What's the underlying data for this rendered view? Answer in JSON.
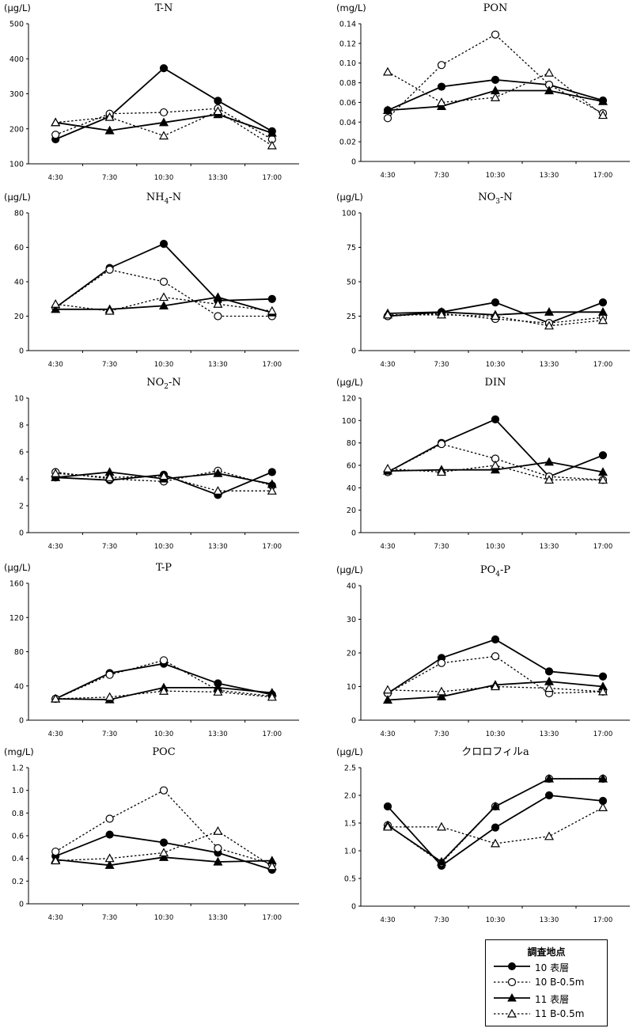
{
  "legend": {
    "title": "調査地点",
    "items": [
      {
        "label": "10 表層",
        "line": "solid",
        "marker": "filled-circle"
      },
      {
        "label": "10 B-0.5m",
        "line": "dotted",
        "marker": "open-circle"
      },
      {
        "label": "11 表層",
        "line": "solid",
        "marker": "filled-triangle"
      },
      {
        "label": "11 B-0.5m",
        "line": "dotted",
        "marker": "open-triangle"
      }
    ]
  },
  "chart_data": [
    {
      "type": "line",
      "title": "T-N",
      "unit": "(μg/L)",
      "categories": [
        "4:30",
        "7:30",
        "10:30",
        "13:30",
        "17:00"
      ],
      "ylim": [
        100,
        500
      ],
      "yticks": [
        "100",
        "200",
        "300",
        "400",
        "500"
      ],
      "grid": false,
      "series": [
        {
          "name": "10 表層",
          "values": [
            170,
            235,
            373,
            280,
            193
          ]
        },
        {
          "name": "10 B-0.5m",
          "values": [
            183,
            243,
            247,
            258,
            170
          ]
        },
        {
          "name": "11 表層",
          "values": [
            218,
            195,
            218,
            241,
            188
          ]
        },
        {
          "name": "11 B-0.5m",
          "values": [
            218,
            233,
            180,
            250,
            152
          ]
        }
      ]
    },
    {
      "type": "line",
      "title": "PON",
      "unit": "(mg/L)",
      "categories": [
        "4:30",
        "7:30",
        "10:30",
        "13:30",
        "17:00"
      ],
      "ylim": [
        0,
        0.14
      ],
      "yticks": [
        "0",
        "0.02",
        "0.04",
        "0.06",
        "0.08",
        "0.10",
        "0.12",
        "0.14"
      ],
      "grid": false,
      "series": [
        {
          "name": "10 表層",
          "values": [
            0.052,
            0.076,
            0.083,
            0.078,
            0.062
          ]
        },
        {
          "name": "10 B-0.5m",
          "values": [
            0.044,
            0.098,
            0.129,
            0.078,
            0.049
          ]
        },
        {
          "name": "11 表層",
          "values": [
            0.052,
            0.056,
            0.072,
            0.072,
            0.061
          ]
        },
        {
          "name": "11 B-0.5m",
          "values": [
            0.091,
            0.06,
            0.065,
            0.09,
            0.047
          ]
        }
      ]
    },
    {
      "type": "line",
      "title": "NH4-N",
      "title_main": "NH",
      "title_sub": "4",
      "title_tail": "-N",
      "unit": "(μg/L)",
      "categories": [
        "4:30",
        "7:30",
        "10:30",
        "13:30",
        "17:00"
      ],
      "ylim": [
        0,
        80
      ],
      "yticks": [
        "0",
        "20",
        "40",
        "60",
        "80"
      ],
      "grid": false,
      "series": [
        {
          "name": "10 表層",
          "values": [
            25,
            48,
            62,
            29,
            30
          ]
        },
        {
          "name": "10 B-0.5m",
          "values": [
            25,
            47,
            40,
            20,
            20
          ]
        },
        {
          "name": "11 表層",
          "values": [
            24,
            24,
            26,
            31,
            22
          ]
        },
        {
          "name": "11 B-0.5m",
          "values": [
            27,
            23,
            31,
            27,
            23
          ]
        }
      ]
    },
    {
      "type": "line",
      "title": "NO3-N",
      "title_main": "NO",
      "title_sub": "3",
      "title_tail": "-N",
      "unit": "(μg/L)",
      "categories": [
        "4:30",
        "7:30",
        "10:30",
        "13:30",
        "17:00"
      ],
      "ylim": [
        0,
        100
      ],
      "yticks": [
        "0",
        "25",
        "50",
        "75",
        "100"
      ],
      "grid": false,
      "series": [
        {
          "name": "10 表層",
          "values": [
            25,
            28,
            35,
            20,
            35
          ]
        },
        {
          "name": "10 B-0.5m",
          "values": [
            25,
            27,
            23,
            20,
            24
          ]
        },
        {
          "name": "11 表層",
          "values": [
            27,
            28,
            26,
            28,
            28
          ]
        },
        {
          "name": "11 B-0.5m",
          "values": [
            26,
            26,
            25,
            18,
            22
          ]
        }
      ]
    },
    {
      "type": "line",
      "title": "NO2-N",
      "title_main": "NO",
      "title_sub": "2",
      "title_tail": "-N",
      "unit": "",
      "categories": [
        "4:30",
        "7:30",
        "10:30",
        "13:30",
        "17:00"
      ],
      "ylim": [
        0,
        10
      ],
      "yticks": [
        "0",
        "2",
        "4",
        "6",
        "8",
        "10"
      ],
      "grid": false,
      "series": [
        {
          "name": "10 表層",
          "values": [
            4.1,
            3.9,
            4.3,
            2.8,
            4.5
          ]
        },
        {
          "name": "10 B-0.5m",
          "values": [
            4.5,
            4.0,
            3.8,
            4.6,
            3.5
          ]
        },
        {
          "name": "11 表層",
          "values": [
            4.1,
            4.5,
            4.0,
            4.4,
            3.6
          ]
        },
        {
          "name": "11 B-0.5m",
          "values": [
            4.4,
            4.1,
            4.2,
            3.1,
            3.1
          ]
        }
      ]
    },
    {
      "type": "line",
      "title": "DIN",
      "unit": "(μg/L)",
      "categories": [
        "4:30",
        "7:30",
        "10:30",
        "13:30",
        "17:00"
      ],
      "ylim": [
        0,
        120
      ],
      "yticks": [
        "0",
        "20",
        "40",
        "60",
        "80",
        "100",
        "120"
      ],
      "grid": false,
      "series": [
        {
          "name": "10 表層",
          "values": [
            54,
            80,
            101,
            50,
            69
          ]
        },
        {
          "name": "10 B-0.5m",
          "values": [
            54,
            79,
            66,
            50,
            47
          ]
        },
        {
          "name": "11 表層",
          "values": [
            55,
            56,
            56,
            63,
            54
          ]
        },
        {
          "name": "11 B-0.5m",
          "values": [
            57,
            54,
            60,
            47,
            47
          ]
        }
      ]
    },
    {
      "type": "line",
      "title": "T-P",
      "unit": "(μg/L)",
      "categories": [
        "4:30",
        "7:30",
        "10:30",
        "13:30",
        "17:00"
      ],
      "ylim": [
        0,
        160
      ],
      "yticks": [
        "0",
        "40",
        "80",
        "120",
        "160"
      ],
      "grid": false,
      "series": [
        {
          "name": "10 表層",
          "values": [
            25,
            55,
            66,
            43,
            30
          ]
        },
        {
          "name": "10 B-0.5m",
          "values": [
            25,
            53,
            70,
            35,
            28
          ]
        },
        {
          "name": "11 表層",
          "values": [
            25,
            24,
            38,
            38,
            32
          ]
        },
        {
          "name": "11 B-0.5m",
          "values": [
            25,
            27,
            34,
            33,
            27
          ]
        }
      ]
    },
    {
      "type": "line",
      "title": "PO4-P",
      "title_main": "PO",
      "title_sub": "4",
      "title_tail": "-P",
      "unit": "(μg/L)",
      "categories": [
        "4:30",
        "7:30",
        "10:30",
        "13:30",
        "17:00"
      ],
      "ylim": [
        0,
        40
      ],
      "yticks": [
        "0",
        "10",
        "20",
        "30",
        "40"
      ],
      "grid": false,
      "series": [
        {
          "name": "10 表層",
          "values": [
            8,
            18.5,
            24,
            14.5,
            13
          ]
        },
        {
          "name": "10 B-0.5m",
          "values": [
            8,
            17,
            19,
            8,
            8.5
          ]
        },
        {
          "name": "11 表層",
          "values": [
            6,
            7,
            10.5,
            11.5,
            10
          ]
        },
        {
          "name": "11 B-0.5m",
          "values": [
            9,
            8.5,
            10,
            9.5,
            8.5
          ]
        }
      ]
    },
    {
      "type": "line",
      "title": "POC",
      "unit": "(mg/L)",
      "categories": [
        "4:30",
        "7:30",
        "10:30",
        "13:30",
        "17:00"
      ],
      "ylim": [
        0,
        1.2
      ],
      "yticks": [
        "0",
        "0.2",
        "0.4",
        "0.6",
        "0.8",
        "1.0",
        "1.2"
      ],
      "grid": false,
      "series": [
        {
          "name": "10 表層",
          "values": [
            0.42,
            0.61,
            0.54,
            0.45,
            0.3
          ]
        },
        {
          "name": "10 B-0.5m",
          "values": [
            0.46,
            0.75,
            1.0,
            0.49,
            0.35
          ]
        },
        {
          "name": "11 表層",
          "values": [
            0.39,
            0.34,
            0.41,
            0.37,
            0.38
          ]
        },
        {
          "name": "11 B-0.5m",
          "values": [
            0.38,
            0.4,
            0.45,
            0.64,
            0.33
          ]
        }
      ]
    },
    {
      "type": "line",
      "title": "クロロフィルa",
      "unit": "(μg/L)",
      "categories": [
        "4:30",
        "7:30",
        "10:30",
        "13:30",
        "17:00"
      ],
      "ylim": [
        0,
        2.5
      ],
      "yticks": [
        "0",
        "0.5",
        "1.0",
        "1.5",
        "2.0",
        "2.5"
      ],
      "grid": false,
      "series": [
        {
          "name": "10 表層",
          "values": [
            1.8,
            0.73,
            1.42,
            2.0,
            1.9
          ]
        },
        {
          "name": "10 B-0.5m",
          "values": [
            1.46,
            0.78,
            1.8,
            2.3,
            2.3
          ]
        },
        {
          "name": "11 表層",
          "values": [
            1.46,
            0.8,
            1.8,
            2.3,
            2.3
          ]
        },
        {
          "name": "11 B-0.5m",
          "values": [
            1.43,
            1.43,
            1.13,
            1.26,
            1.78
          ]
        }
      ]
    }
  ]
}
